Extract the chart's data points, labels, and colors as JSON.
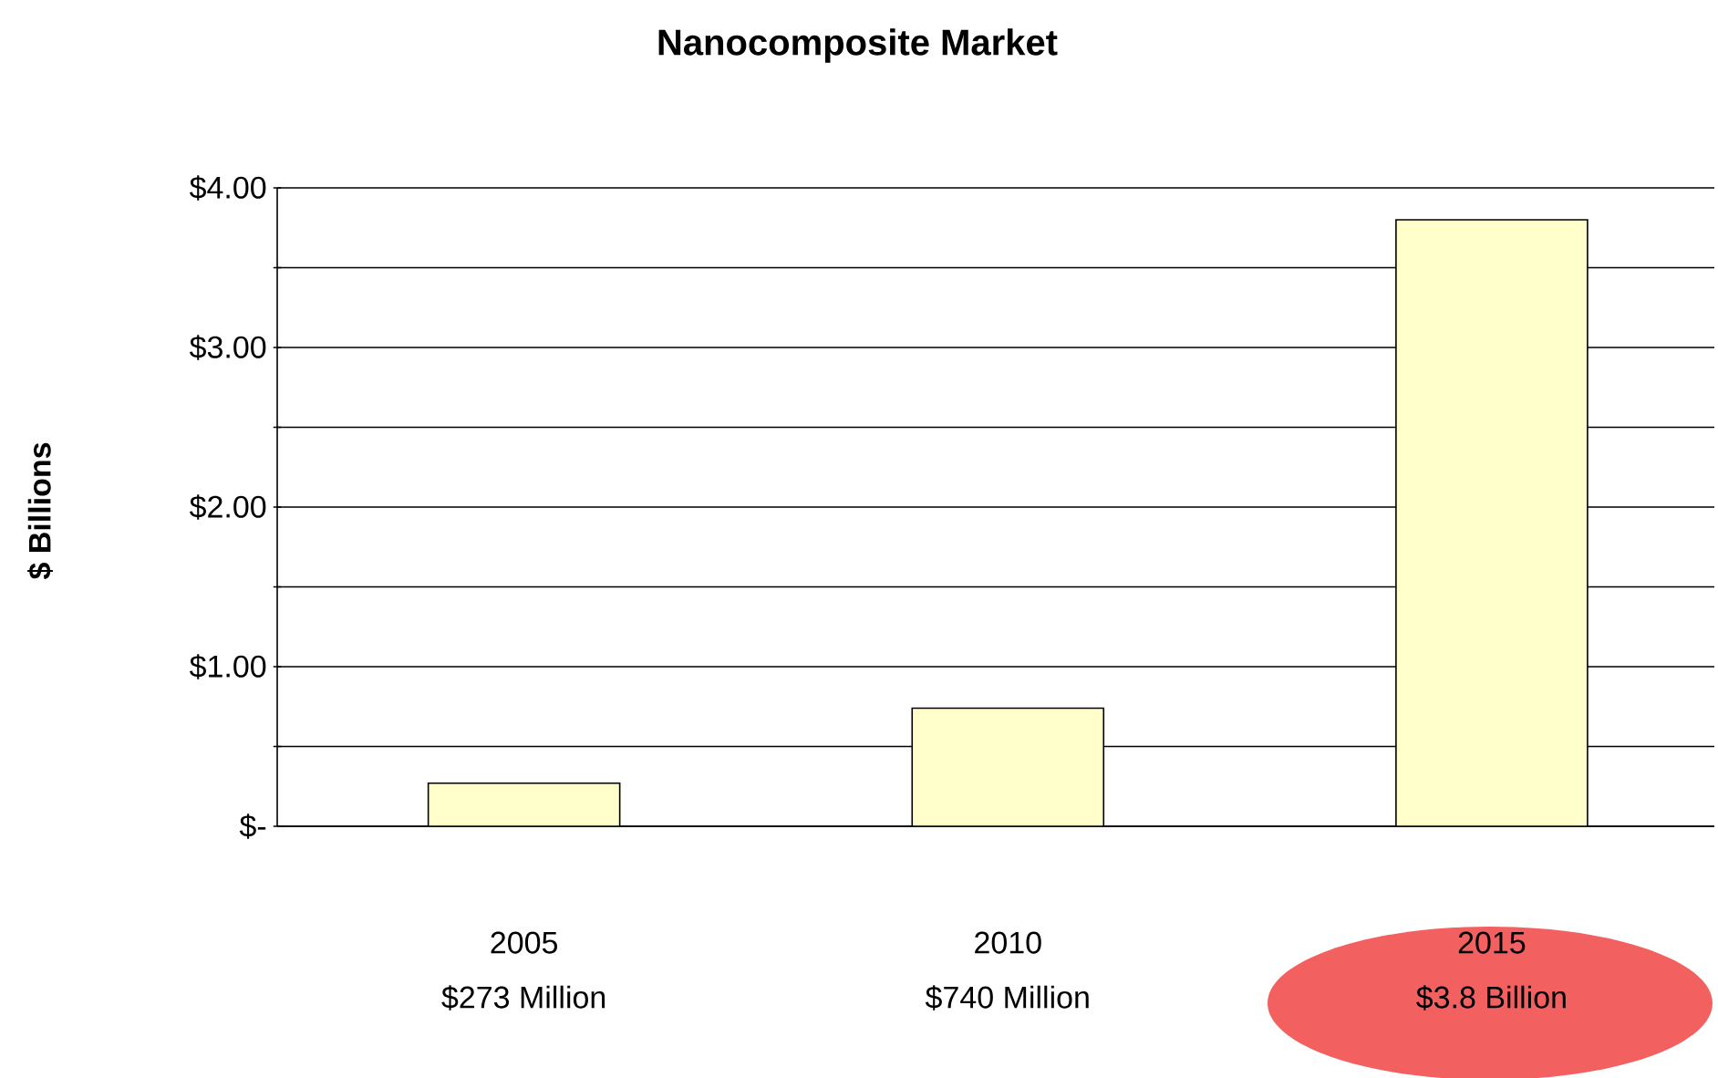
{
  "chart_data": {
    "type": "bar",
    "title": "Nanocomposite Market",
    "ylabel": "$ Billions",
    "categories": [
      "2005",
      "2010",
      "2015"
    ],
    "values": [
      0.27,
      0.74,
      3.8
    ],
    "annotations": [
      "$273 Million",
      "$740 Million",
      "$3.8 Billion"
    ],
    "color": "#ffffcc",
    "ylim": [
      0,
      4
    ],
    "yticks": [
      {
        "value": 0,
        "label": "$-"
      },
      {
        "value": 0.5,
        "label": null
      },
      {
        "value": 1,
        "label": "$1.00"
      },
      {
        "value": 1.5,
        "label": null
      },
      {
        "value": 2,
        "label": "$2.00"
      },
      {
        "value": 2.5,
        "label": null
      },
      {
        "value": 3,
        "label": "$3.00"
      },
      {
        "value": 3.5,
        "label": null
      },
      {
        "value": 4,
        "label": "$4.00"
      }
    ],
    "grid": "y"
  }
}
